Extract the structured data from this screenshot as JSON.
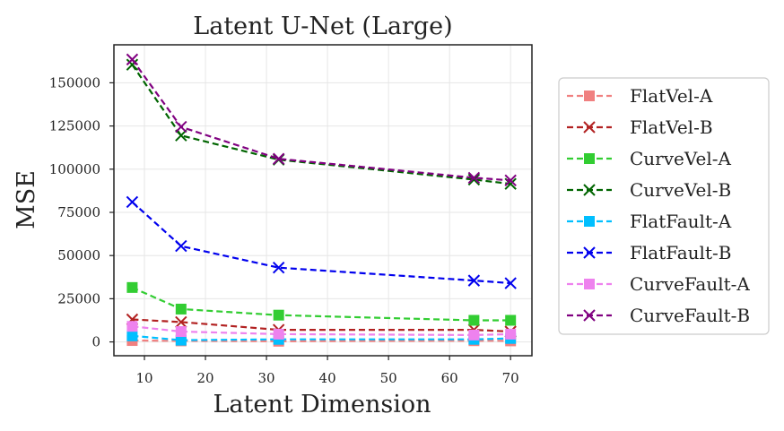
{
  "chart_data": {
    "type": "line",
    "title": "Latent U-Net (Large)",
    "xlabel": "Latent Dimension",
    "ylabel": "MSE",
    "xlim": [
      5,
      73.5
    ],
    "ylim": [
      -8000,
      172000
    ],
    "x_ticks": [
      10,
      20,
      30,
      40,
      50,
      60,
      70
    ],
    "y_ticks": [
      0,
      25000,
      50000,
      75000,
      100000,
      125000,
      150000
    ],
    "grid": true,
    "legend_position": "right",
    "x": [
      8,
      16,
      32,
      64,
      70
    ],
    "series": [
      {
        "name": "FlatVel-A",
        "color": "#f08080",
        "marker": "square",
        "values": [
          800,
          600,
          400,
          700,
          600
        ]
      },
      {
        "name": "FlatVel-B",
        "color": "#b22222",
        "marker": "x",
        "values": [
          13000,
          11500,
          7000,
          7000,
          6000
        ]
      },
      {
        "name": "CurveVel-A",
        "color": "#32cd32",
        "marker": "square",
        "values": [
          31500,
          19000,
          15500,
          12500,
          12500
        ]
      },
      {
        "name": "CurveVel-B",
        "color": "#006400",
        "marker": "x",
        "values": [
          160500,
          119500,
          105500,
          94000,
          91500
        ]
      },
      {
        "name": "FlatFault-A",
        "color": "#00bfff",
        "marker": "square",
        "values": [
          3500,
          1000,
          1500,
          1500,
          2000
        ]
      },
      {
        "name": "FlatFault-B",
        "color": "#0000ee",
        "marker": "x",
        "values": [
          81000,
          55500,
          43000,
          35500,
          34000
        ]
      },
      {
        "name": "CurveFault-A",
        "color": "#ee82ee",
        "marker": "square",
        "values": [
          9000,
          6000,
          4500,
          4000,
          4500
        ]
      },
      {
        "name": "CurveFault-B",
        "color": "#800080",
        "marker": "x",
        "values": [
          163500,
          124500,
          106000,
          95000,
          93500
        ]
      }
    ]
  }
}
